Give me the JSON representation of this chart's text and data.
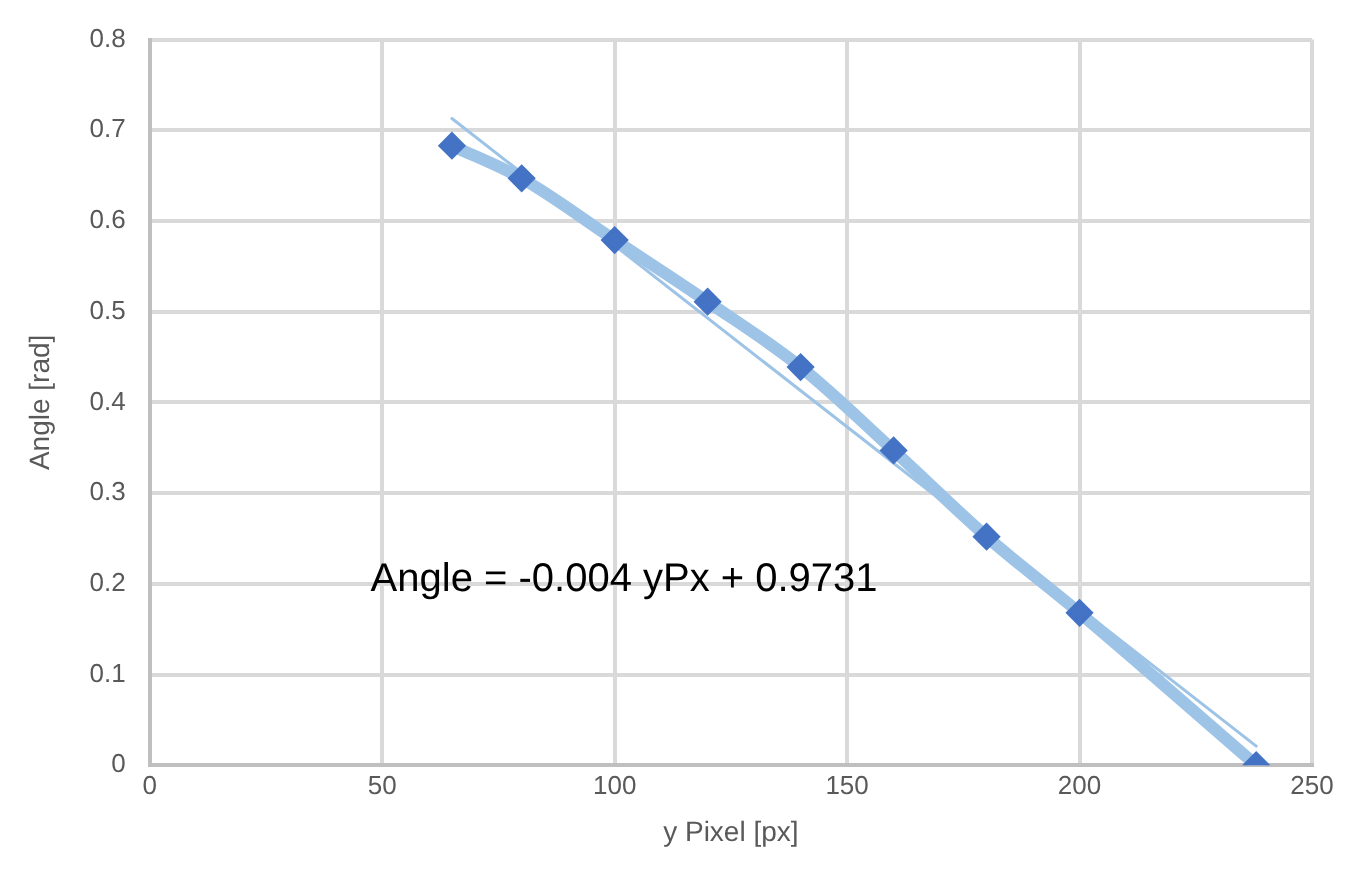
{
  "chart_data": {
    "type": "line",
    "xlabel": "y Pixel [px]",
    "ylabel": "Angle [rad]",
    "annotations": [
      "Angle = -0.004 yPx + 0.9731"
    ],
    "series": [
      {
        "x": [
          65,
          80,
          100,
          120,
          140,
          160,
          180,
          200,
          238
        ],
        "values": [
          0.683,
          0.647,
          0.579,
          0.511,
          0.439,
          0.347,
          0.252,
          0.168,
          0.0
        ],
        "color": "#9dc3e6",
        "marker": "none"
      },
      {
        "type": "scatter",
        "x": [
          65,
          80,
          100,
          120,
          140,
          160,
          180,
          200,
          238
        ],
        "values": [
          0.683,
          0.647,
          0.579,
          0.511,
          0.439,
          0.347,
          0.252,
          0.168,
          0.0
        ],
        "color": "#4472c4",
        "marker": "diamond"
      },
      {
        "x": [
          65,
          238
        ],
        "values": [
          0.713,
          0.021
        ],
        "color": "#9dc3e6",
        "marker": "none"
      }
    ],
    "xlim": [
      0,
      250
    ],
    "xticks": [
      0,
      50,
      100,
      150,
      200,
      250
    ],
    "ylim": [
      0,
      0.8
    ],
    "yticks": [
      0,
      0.1,
      0.2,
      0.3,
      0.4,
      0.5,
      0.6,
      0.7,
      0.8
    ],
    "grid": true,
    "legend": false,
    "line_style": "solid"
  }
}
